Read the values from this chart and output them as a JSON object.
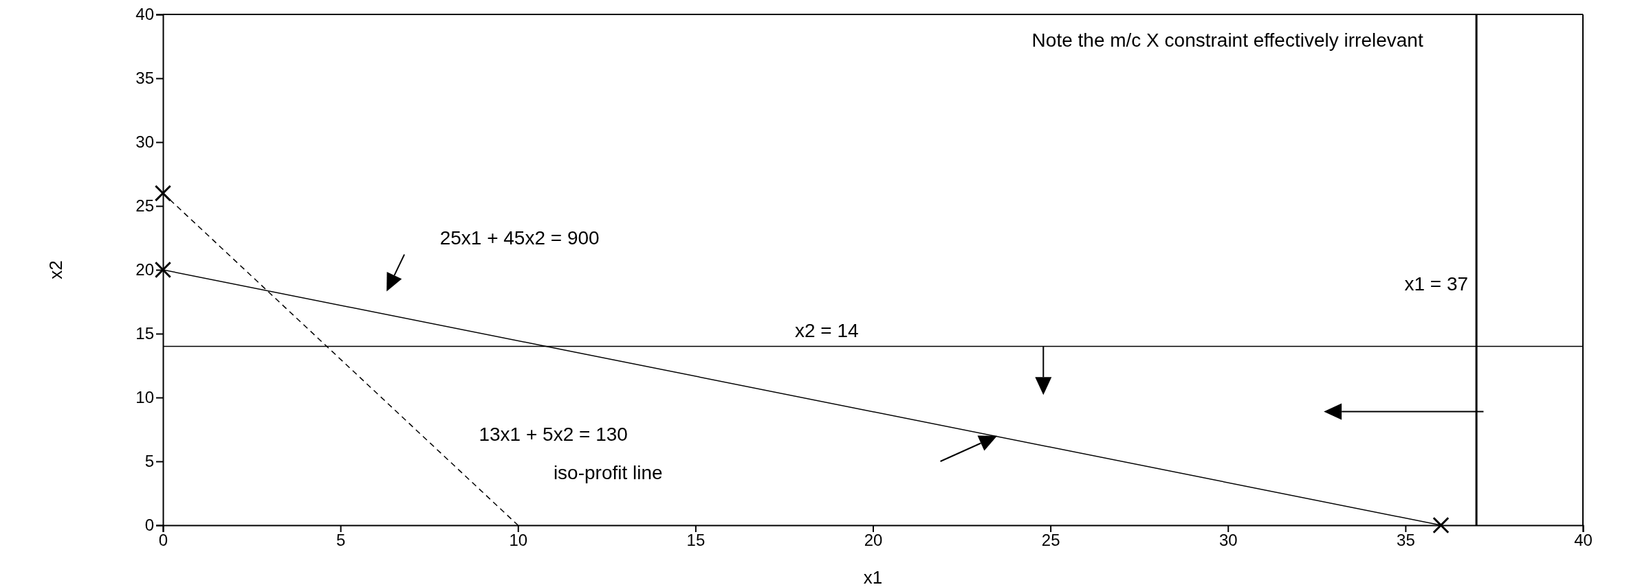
{
  "chart_data": {
    "type": "line",
    "xlabel": "x1",
    "ylabel": "x2",
    "xlim": [
      0,
      40
    ],
    "ylim": [
      0,
      40
    ],
    "xticks": [
      0,
      5,
      10,
      15,
      20,
      25,
      30,
      35,
      40
    ],
    "yticks": [
      0,
      5,
      10,
      15,
      20,
      25,
      30,
      35,
      40
    ],
    "grid": false,
    "series": [
      {
        "color": "#000000",
        "x": [
          0,
          36
        ],
        "values": [
          20,
          0
        ],
        "line_style": "solid",
        "marker": "cross"
      },
      {
        "color": "#000000",
        "x": [
          0,
          10
        ],
        "values": [
          26,
          0
        ],
        "line_style": "dashed"
      },
      {
        "type": "scatter",
        "color": "#000000",
        "x": [
          0
        ],
        "values": [
          26
        ],
        "marker": "cross"
      }
    ],
    "ref_lines": [
      {
        "axis": "y",
        "value": 14,
        "label": "x2 = 14"
      },
      {
        "axis": "x",
        "value": 37,
        "label": "x1 = 37"
      }
    ],
    "annotations": [
      "Note the m/c X constraint effectively irrelevant",
      "25x1  +  45x2  =  900",
      "13x1 + 5x2 = 130",
      "iso-profit line"
    ]
  }
}
